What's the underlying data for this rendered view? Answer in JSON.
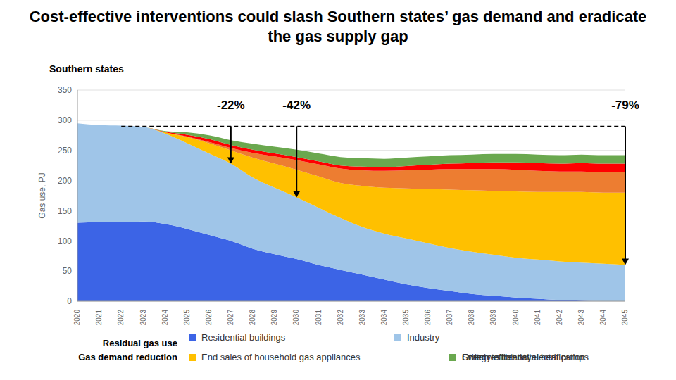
{
  "chart_data": {
    "type": "area",
    "title": "Cost-effective interventions could slash Southern states’ gas demand and eradicate the gas supply gap",
    "subtitle": "Southern states",
    "y_label": "Gas use, PJ",
    "stacked": true,
    "grid": true,
    "legend": "bottom",
    "legend_groups": [
      "Residual gas use",
      "Gas demand reduction"
    ],
    "x": [
      2020,
      2021,
      2022,
      2023,
      2024,
      2025,
      2026,
      2027,
      2028,
      2029,
      2030,
      2031,
      2032,
      2033,
      2034,
      2035,
      2036,
      2037,
      2038,
      2039,
      2040,
      2041,
      2042,
      2043,
      2044,
      2045
    ],
    "xlim": [
      2020,
      2045
    ],
    "xticks": [
      2020,
      2021,
      2022,
      2023,
      2024,
      2025,
      2026,
      2027,
      2028,
      2029,
      2030,
      2031,
      2032,
      2033,
      2034,
      2035,
      2036,
      2037,
      2038,
      2039,
      2040,
      2041,
      2042,
      2043,
      2044,
      2045
    ],
    "ylim": [
      0,
      350
    ],
    "yticks": [
      0,
      50,
      100,
      150,
      200,
      250,
      300,
      350
    ],
    "series": [
      {
        "name": "Residential buildings",
        "group": "Residual gas use",
        "color": "#3c64e6",
        "values": [
          130,
          131,
          131,
          132,
          128,
          120,
          110,
          100,
          87,
          78,
          70,
          60,
          52,
          44,
          36,
          28,
          22,
          17,
          12,
          9,
          6,
          4,
          2,
          1,
          0,
          0
        ]
      },
      {
        "name": "Industry",
        "group": "Residual gas use",
        "color": "#9fc5e8",
        "values": [
          165,
          161,
          160,
          157,
          150,
          142,
          135,
          128,
          118,
          110,
          102,
          95,
          86,
          79,
          76,
          76,
          74,
          71,
          70,
          68,
          66,
          65,
          64,
          63,
          62,
          60
        ]
      },
      {
        "name": "End sales of household gas appliances",
        "group": "Gas demand reduction",
        "color": "#ffc000",
        "values": [
          0,
          0,
          0,
          0,
          2,
          10,
          17,
          22,
          33,
          40,
          46,
          52,
          58,
          68,
          76,
          83,
          90,
          97,
          102,
          106,
          110,
          112,
          115,
          117,
          118,
          120
        ]
      },
      {
        "name": "Switch to industrial heat pumps",
        "group": "Gas demand reduction",
        "color": "#ed7d31",
        "values": [
          0,
          0,
          0,
          0,
          0,
          1,
          2,
          4,
          8,
          12,
          16,
          20,
          24,
          26,
          28,
          30,
          32,
          34,
          35,
          36,
          36,
          35,
          34,
          34,
          34,
          34
        ]
      },
      {
        "name": "Other residential electrification",
        "group": "Gas demand reduction",
        "color": "#ff0000",
        "values": [
          0,
          0,
          0,
          0,
          1,
          3,
          5,
          5,
          5,
          5,
          5,
          5,
          5,
          6,
          6,
          7,
          8,
          9,
          10,
          11,
          12,
          13,
          13,
          14,
          14,
          14
        ]
      },
      {
        "name": "Energy efficiency",
        "group": "Gas demand reduction",
        "color": "#6aa84f",
        "values": [
          0,
          0,
          0,
          0,
          1,
          4,
          6,
          8,
          10,
          11,
          12,
          13,
          14,
          14,
          14,
          14,
          14,
          14,
          14,
          14,
          14,
          14,
          14,
          14,
          14,
          14
        ]
      }
    ],
    "reference_line": {
      "y": 290,
      "x_from": 2022,
      "x_to": 2045
    },
    "annotations": [
      {
        "text": "-22%",
        "x": 2027,
        "y_from": 290,
        "y_to": 228
      },
      {
        "text": "-42%",
        "x": 2030,
        "y_from": 290,
        "y_to": 172
      },
      {
        "text": "-79%",
        "x": 2045,
        "y_from": 290,
        "y_to": 60
      }
    ]
  }
}
